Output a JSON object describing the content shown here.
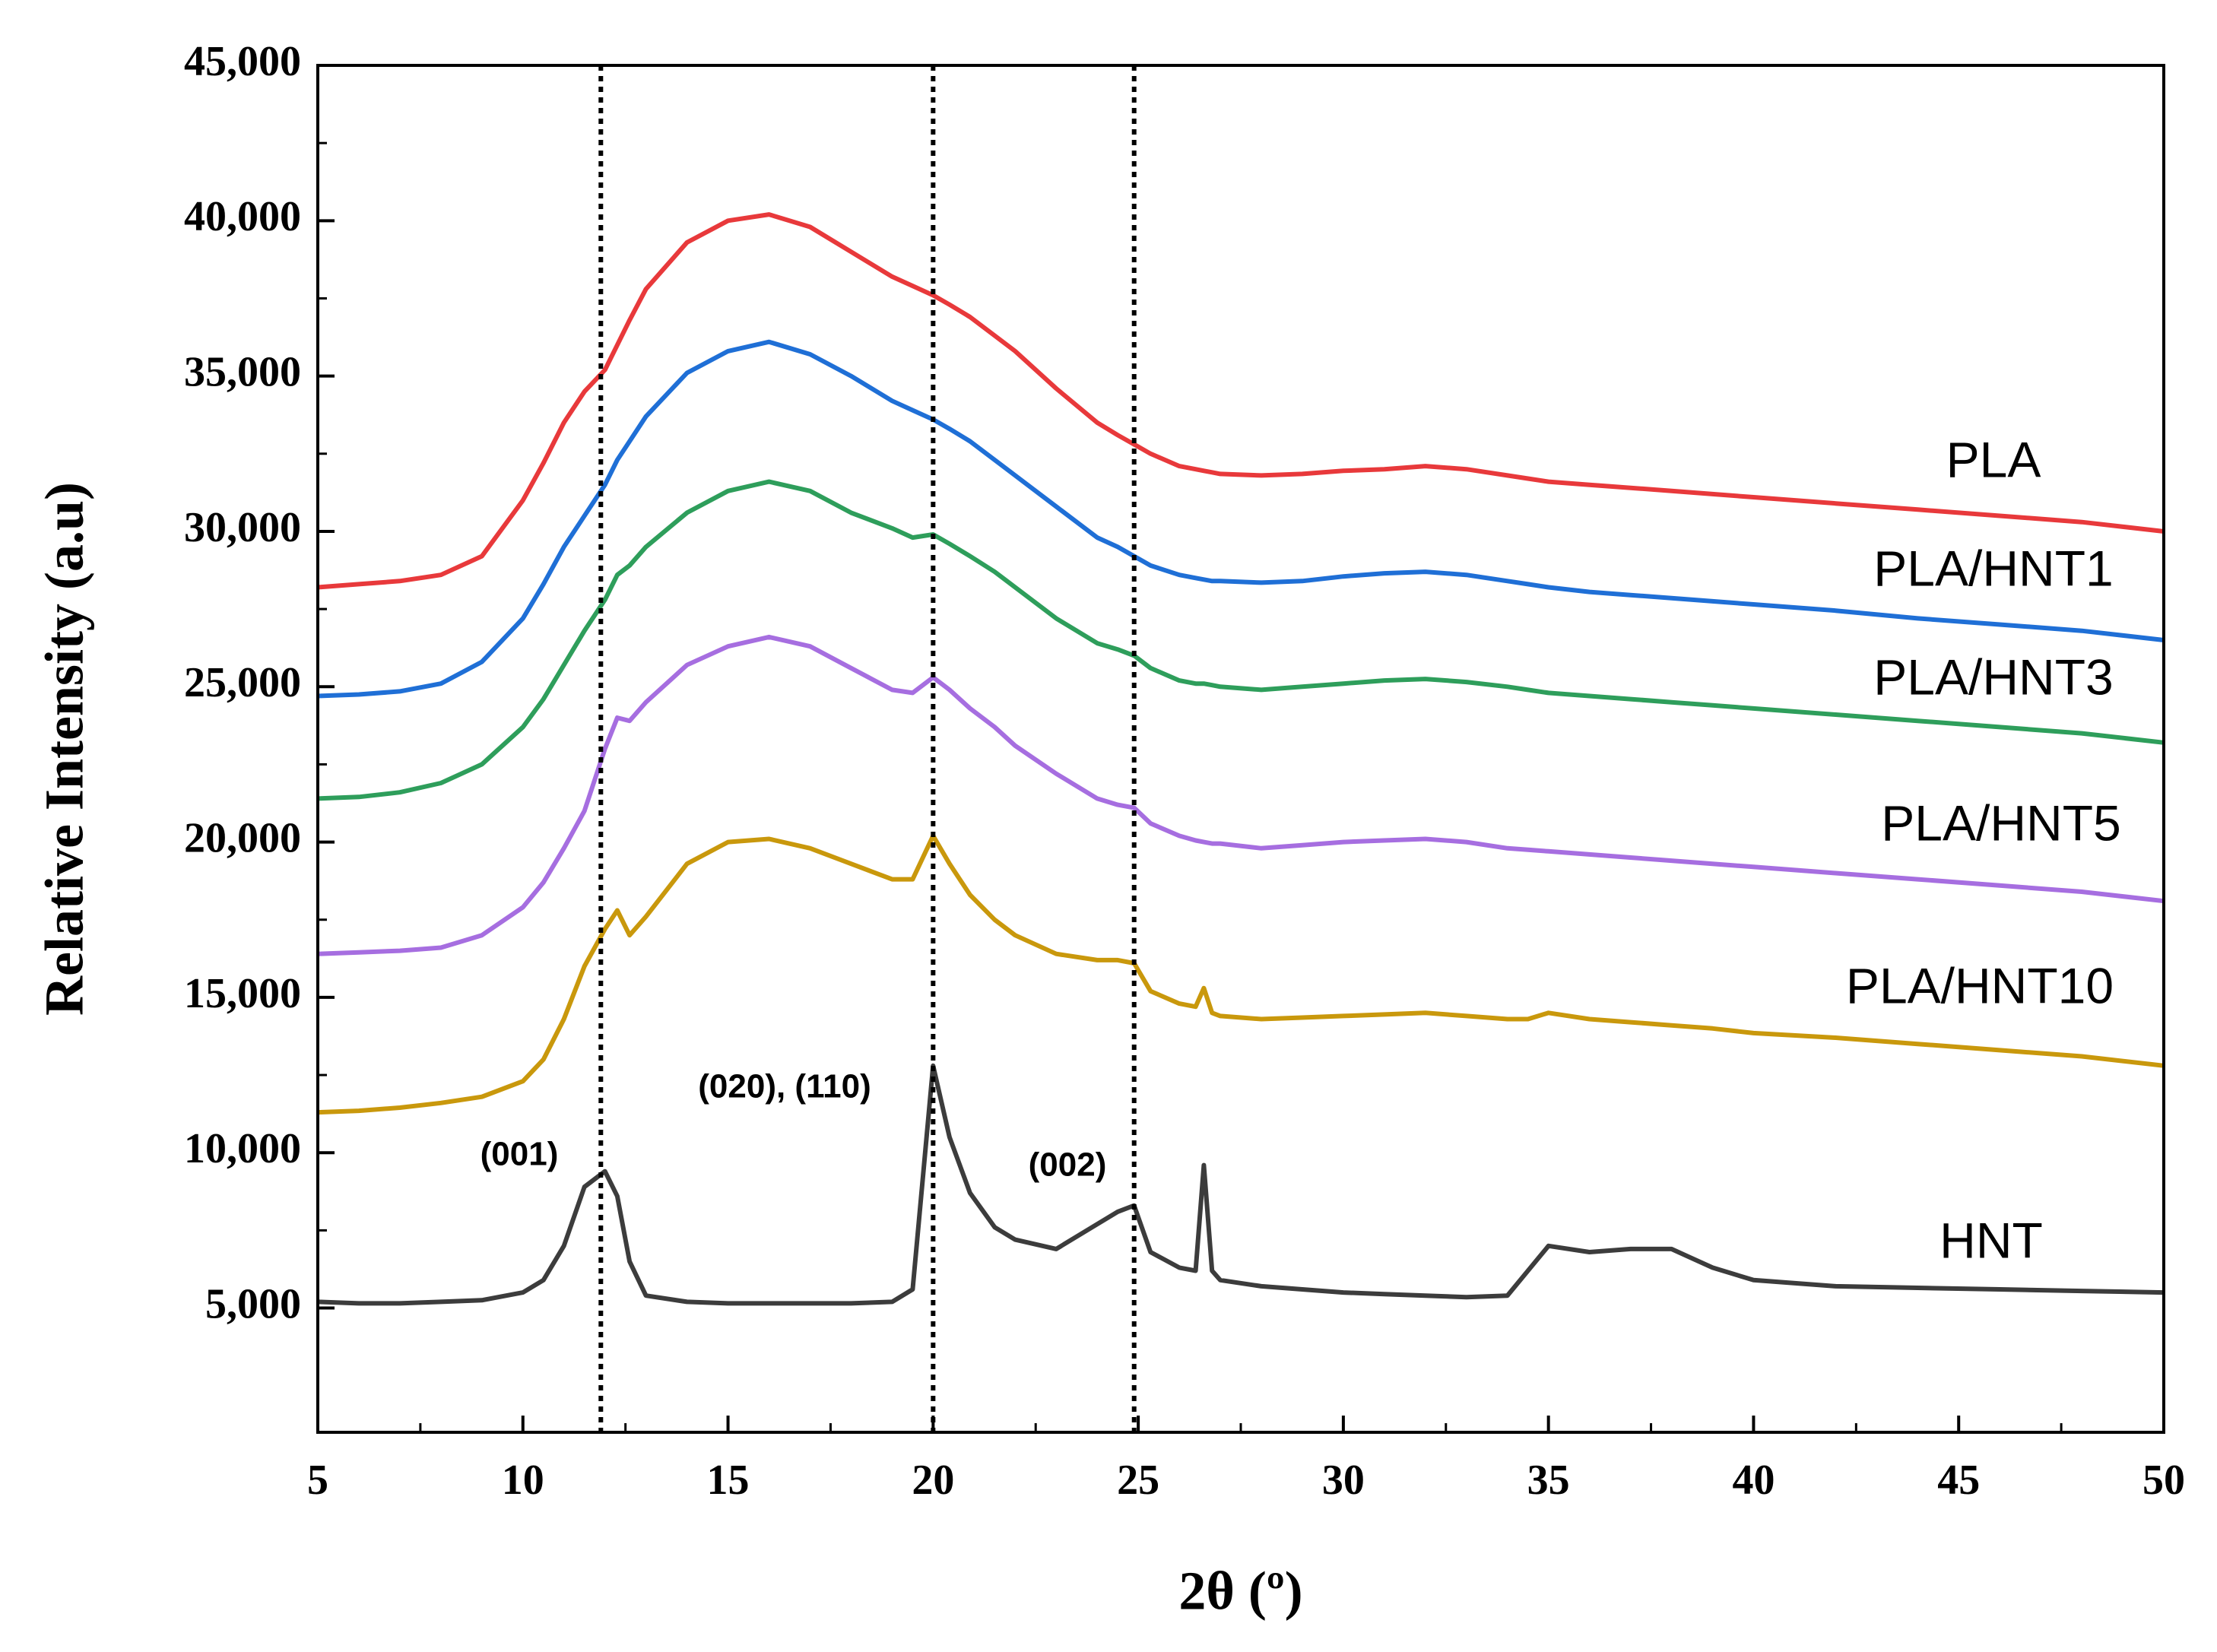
{
  "chart_data": {
    "type": "line",
    "x_label": "2θ (º)",
    "y_label": "Relative Intensity (a.u)",
    "xlim": [
      5,
      50
    ],
    "xticks": [
      5,
      10,
      15,
      20,
      25,
      30,
      35,
      40,
      45,
      50
    ],
    "ylim": [
      1000,
      45000
    ],
    "yticks": [
      {
        "value": 5000,
        "label": "5,000"
      },
      {
        "value": 10000,
        "label": "10,000"
      },
      {
        "value": 15000,
        "label": "15,000"
      },
      {
        "value": 20000,
        "label": "20,000"
      },
      {
        "value": 25000,
        "label": "25,000"
      },
      {
        "value": 30000,
        "label": "30,000"
      },
      {
        "value": 35000,
        "label": "35,000"
      },
      {
        "value": 40000,
        "label": "40,000"
      },
      {
        "value": 45000,
        "label": "45,000"
      }
    ],
    "vlines": [
      11.9,
      20,
      24.9
    ],
    "annotations": [
      "(001)",
      "(020), (110)",
      "(002)"
    ],
    "x": [
      5,
      6,
      7,
      8,
      9,
      10,
      10.5,
      11,
      11.5,
      12,
      12.3,
      12.6,
      13,
      14,
      15,
      16,
      17,
      18,
      19,
      19.5,
      20,
      20.4,
      20.9,
      21.5,
      22,
      23,
      24,
      24.5,
      24.9,
      25.3,
      26,
      26.4,
      26.6,
      26.8,
      27,
      28,
      29,
      30,
      31,
      32,
      33,
      34,
      34.5,
      35,
      36,
      37,
      38,
      39,
      40,
      42,
      44,
      46,
      48,
      50
    ],
    "series": [
      {
        "name": "PLA",
        "color": "#e8393b",
        "values": [
          28200,
          28300,
          28400,
          28600,
          29200,
          31000,
          32200,
          33500,
          34500,
          35200,
          36000,
          36800,
          37800,
          39300,
          40000,
          40200,
          39800,
          39000,
          38200,
          37900,
          37600,
          37300,
          36900,
          36300,
          35800,
          34600,
          33500,
          33100,
          32800,
          32500,
          32100,
          32000,
          31950,
          31900,
          31850,
          31800,
          31850,
          31950,
          32000,
          32100,
          32000,
          31800,
          31700,
          31600,
          31500,
          31400,
          31300,
          31200,
          31100,
          30900,
          30700,
          30500,
          30300,
          30000
        ]
      },
      {
        "name": "PLA/HNT1",
        "color": "#1f6fd6",
        "values": [
          24700,
          24750,
          24850,
          25100,
          25800,
          27200,
          28300,
          29500,
          30500,
          31500,
          32300,
          32900,
          33700,
          35100,
          35800,
          36100,
          35700,
          35000,
          34200,
          33900,
          33600,
          33300,
          32900,
          32300,
          31800,
          30800,
          29800,
          29500,
          29200,
          28900,
          28600,
          28500,
          28450,
          28400,
          28400,
          28350,
          28400,
          28550,
          28650,
          28700,
          28600,
          28400,
          28300,
          28200,
          28050,
          27950,
          27850,
          27750,
          27650,
          27450,
          27200,
          27000,
          26800,
          26500
        ]
      },
      {
        "name": "PLA/HNT3",
        "color": "#2e9e5b",
        "values": [
          21400,
          21450,
          21600,
          21900,
          22500,
          23700,
          24600,
          25700,
          26800,
          27800,
          28600,
          28900,
          29500,
          30600,
          31300,
          31600,
          31300,
          30600,
          30100,
          29800,
          29900,
          29600,
          29200,
          28700,
          28200,
          27200,
          26400,
          26200,
          26000,
          25600,
          25200,
          25100,
          25100,
          25050,
          25000,
          24900,
          25000,
          25100,
          25200,
          25250,
          25150,
          25000,
          24900,
          24800,
          24700,
          24600,
          24500,
          24400,
          24300,
          24100,
          23900,
          23700,
          23500,
          23200
        ]
      },
      {
        "name": "PLA/HNT5",
        "color": "#a66ee0",
        "values": [
          16400,
          16450,
          16500,
          16600,
          17000,
          17900,
          18700,
          19800,
          21000,
          23000,
          24000,
          23900,
          24500,
          25700,
          26300,
          26600,
          26300,
          25600,
          24900,
          24800,
          25300,
          24900,
          24300,
          23700,
          23100,
          22200,
          21400,
          21200,
          21100,
          20600,
          20200,
          20050,
          20000,
          19950,
          19950,
          19800,
          19900,
          20000,
          20050,
          20100,
          20000,
          19800,
          19750,
          19700,
          19600,
          19500,
          19400,
          19300,
          19200,
          19000,
          18800,
          18600,
          18400,
          18100
        ]
      },
      {
        "name": "PLA/HNT10",
        "color": "#c9980c",
        "values": [
          11300,
          11350,
          11450,
          11600,
          11800,
          12300,
          13000,
          14300,
          16000,
          17200,
          17800,
          17000,
          17600,
          19300,
          20000,
          20100,
          19800,
          19300,
          18800,
          18800,
          20200,
          19300,
          18300,
          17500,
          17000,
          16400,
          16200,
          16200,
          16100,
          15200,
          14800,
          14700,
          15300,
          14500,
          14400,
          14300,
          14350,
          14400,
          14450,
          14500,
          14400,
          14300,
          14300,
          14500,
          14300,
          14200,
          14100,
          14000,
          13850,
          13700,
          13500,
          13300,
          13100,
          12800
        ]
      },
      {
        "name": "HNT",
        "color": "#3c3c3c",
        "values": [
          5200,
          5150,
          5150,
          5200,
          5250,
          5500,
          5900,
          7000,
          8900,
          9400,
          8600,
          6500,
          5400,
          5200,
          5150,
          5150,
          5150,
          5150,
          5200,
          5600,
          12800,
          10500,
          8700,
          7600,
          7200,
          6900,
          7700,
          8100,
          8300,
          6800,
          6300,
          6200,
          9600,
          6200,
          5900,
          5700,
          5600,
          5500,
          5450,
          5400,
          5350,
          5400,
          6200,
          7000,
          6800,
          6900,
          6900,
          6300,
          5900,
          5700,
          5650,
          5600,
          5550,
          5500
        ]
      }
    ]
  }
}
